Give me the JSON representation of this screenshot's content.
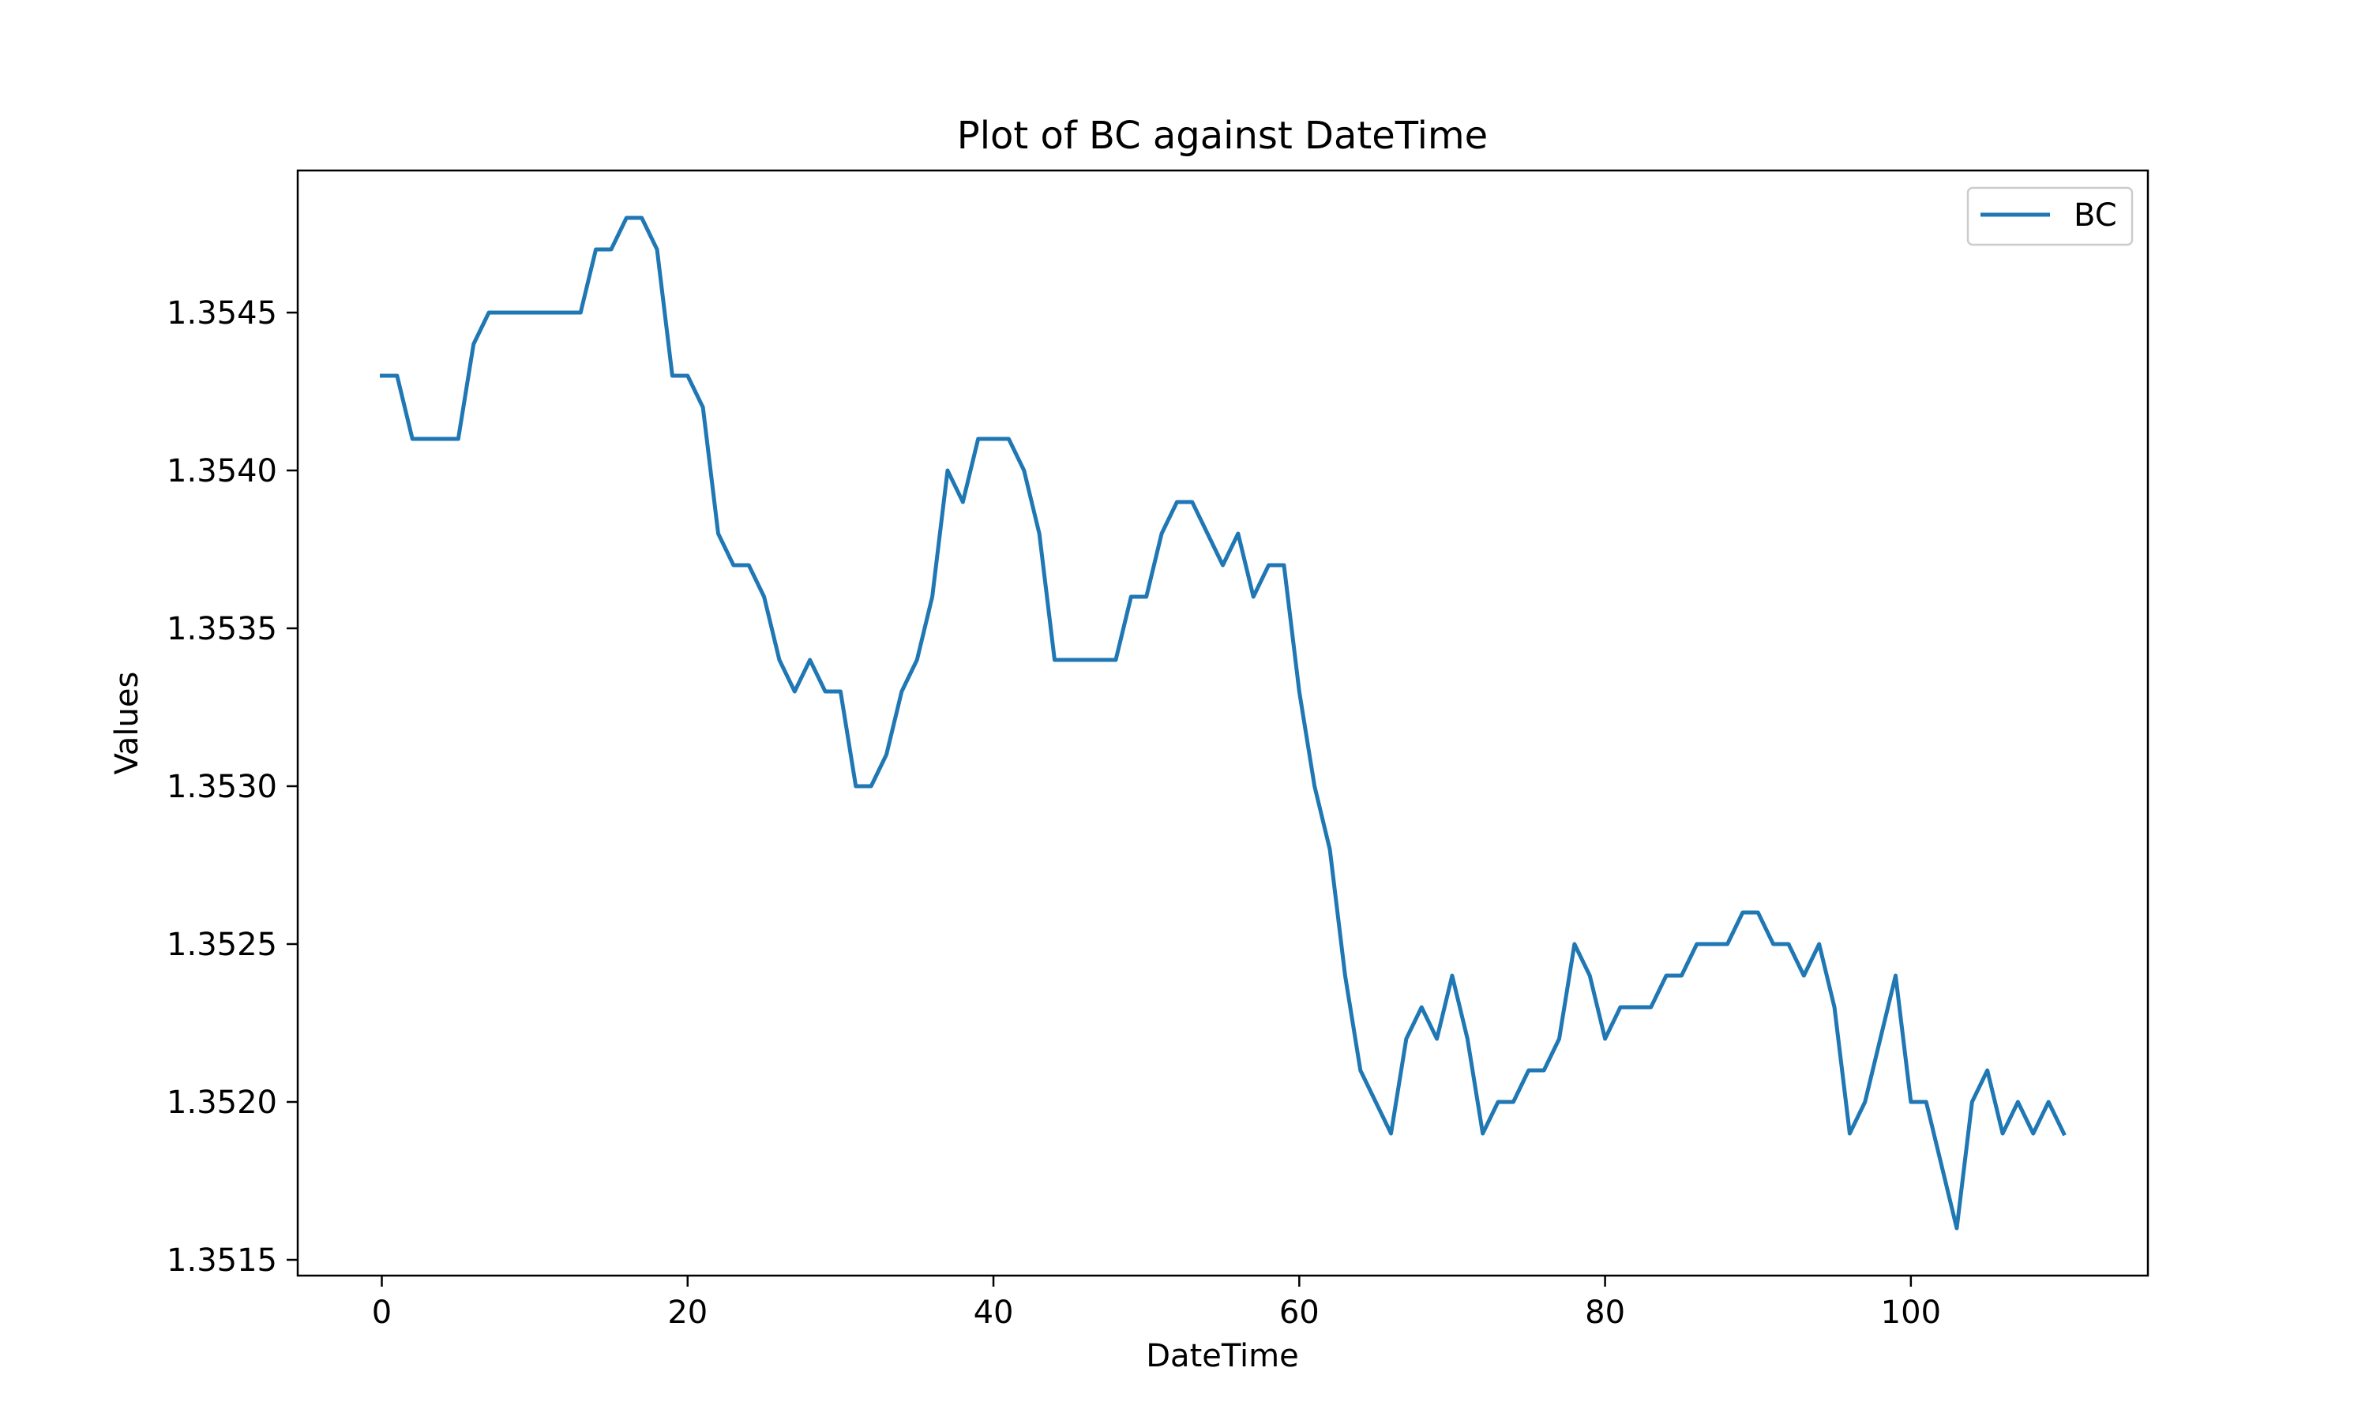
{
  "chart_data": {
    "type": "line",
    "title": "Plot of BC against DateTime",
    "xlabel": "DateTime",
    "ylabel": "Values",
    "xlim": [
      -5.5,
      115.5
    ],
    "ylim": [
      1.35145,
      1.35495
    ],
    "xticks": [
      0,
      20,
      40,
      60,
      80,
      100
    ],
    "xtick_labels": [
      "0",
      "20",
      "40",
      "60",
      "80",
      "100"
    ],
    "yticks": [
      1.3515,
      1.352,
      1.3525,
      1.353,
      1.3535,
      1.354,
      1.3545
    ],
    "ytick_labels": [
      "1.3515",
      "1.3520",
      "1.3525",
      "1.3530",
      "1.3535",
      "1.3540",
      "1.3545"
    ],
    "grid": false,
    "legend": {
      "placement": "top-right",
      "entries": [
        "BC"
      ]
    },
    "series": [
      {
        "name": "BC",
        "color": "#1f77b4",
        "x": [
          0,
          1,
          2,
          3,
          4,
          5,
          6,
          7,
          8,
          9,
          10,
          11,
          12,
          13,
          14,
          15,
          16,
          17,
          18,
          19,
          20,
          21,
          22,
          23,
          24,
          25,
          26,
          27,
          28,
          29,
          30,
          31,
          32,
          33,
          34,
          35,
          36,
          37,
          38,
          39,
          40,
          41,
          42,
          43,
          44,
          45,
          46,
          47,
          48,
          49,
          50,
          51,
          52,
          53,
          54,
          55,
          56,
          57,
          58,
          59,
          60,
          61,
          62,
          63,
          64,
          65,
          66,
          67,
          68,
          69,
          70,
          71,
          72,
          73,
          74,
          75,
          76,
          77,
          78,
          79,
          80,
          81,
          82,
          83,
          84,
          85,
          86,
          87,
          88,
          89,
          90,
          91,
          92,
          93,
          94,
          95,
          96,
          97,
          98,
          99,
          100,
          101,
          102,
          103,
          104,
          105,
          106,
          107,
          108,
          109,
          110
        ],
        "y": [
          1.3543,
          1.3543,
          1.3541,
          1.3541,
          1.3541,
          1.3541,
          1.3544,
          1.3545,
          1.3545,
          1.3545,
          1.3545,
          1.3545,
          1.3545,
          1.3545,
          1.3547,
          1.3547,
          1.3548,
          1.3548,
          1.3547,
          1.3543,
          1.3543,
          1.3542,
          1.3538,
          1.3537,
          1.3537,
          1.3536,
          1.3534,
          1.3533,
          1.3534,
          1.3533,
          1.3533,
          1.353,
          1.353,
          1.3531,
          1.3533,
          1.3534,
          1.3536,
          1.354,
          1.3539,
          1.3541,
          1.3541,
          1.3541,
          1.354,
          1.3538,
          1.3534,
          1.3534,
          1.3534,
          1.3534,
          1.3534,
          1.3536,
          1.3536,
          1.3538,
          1.3539,
          1.3539,
          1.3538,
          1.3537,
          1.3538,
          1.3536,
          1.3537,
          1.3537,
          1.3533,
          1.353,
          1.3528,
          1.3524,
          1.3521,
          1.352,
          1.3519,
          1.3522,
          1.3523,
          1.3522,
          1.3524,
          1.3522,
          1.3519,
          1.352,
          1.352,
          1.3521,
          1.3521,
          1.3522,
          1.3525,
          1.3524,
          1.3522,
          1.3523,
          1.3523,
          1.3523,
          1.3524,
          1.3524,
          1.3525,
          1.3525,
          1.3525,
          1.3526,
          1.3526,
          1.3525,
          1.3525,
          1.3524,
          1.3525,
          1.3523,
          1.3519,
          1.352,
          1.3522,
          1.3524,
          1.352,
          1.352,
          1.3518,
          1.3516,
          1.352,
          1.3521,
          1.3519,
          1.352,
          1.3519,
          1.352,
          1.3519
        ]
      }
    ]
  }
}
